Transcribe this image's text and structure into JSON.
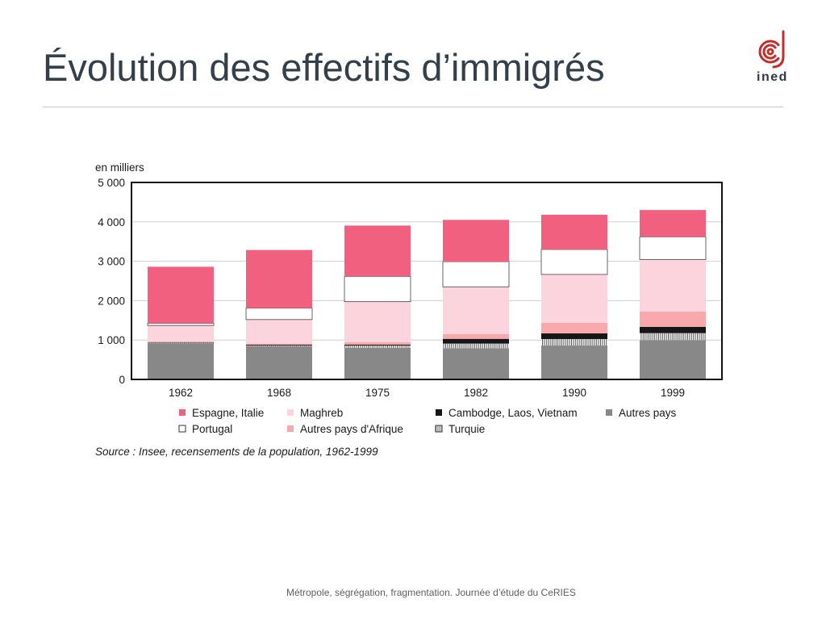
{
  "slide": {
    "title": "Évolution des effectifs d’immigrés",
    "footer": "Métropole, ségrégation, fragmentation. Journée d’étude du CeRIES"
  },
  "logo": {
    "icon": "ined-logo-icon",
    "text": "ined",
    "color": "#c62d2a"
  },
  "colors": {
    "title": "#333f4a",
    "rule": "#c6c6c6",
    "footer": "#5f5f5f"
  },
  "chart_data": {
    "type": "bar",
    "stacked": true,
    "ylabel": "en milliers",
    "ylim": [
      0,
      5000
    ],
    "yticks": [
      0,
      1000,
      2000,
      3000,
      4000,
      5000
    ],
    "ytick_labels": [
      "0",
      "1 000",
      "2 000",
      "3 000",
      "4 000",
      "5 000"
    ],
    "grid": true,
    "legend_position": "bottom",
    "categories": [
      "1962",
      "1968",
      "1975",
      "1982",
      "1990",
      "1999"
    ],
    "series": [
      {
        "name": "Autres pays",
        "color": "#888888",
        "values": [
          920,
          840,
          800,
          790,
          860,
          1000
        ]
      },
      {
        "name": "Turquie",
        "color": "#555555",
        "pattern": "vertical-stripes",
        "values": [
          15,
          20,
          60,
          120,
          165,
          175
        ]
      },
      {
        "name": "Cambodge, Laos, Vietnam",
        "color": "#161616",
        "values": [
          10,
          20,
          25,
          120,
          145,
          160
        ]
      },
      {
        "name": "Autres pays d'Afrique",
        "color": "#f9a9ab",
        "values": [
          20,
          30,
          60,
          120,
          265,
          390
        ]
      },
      {
        "name": "Maghreb",
        "color": "#fcd4de",
        "values": [
          405,
          610,
          1030,
          1200,
          1230,
          1320
        ]
      },
      {
        "name": "Portugal",
        "color": "#ffffff",
        "values": [
          55,
          290,
          640,
          640,
          635,
          575
        ]
      },
      {
        "name": "Espagne, Italie",
        "color": "#f1607e",
        "values": [
          1435,
          1475,
          1290,
          1060,
          880,
          680
        ]
      }
    ],
    "source": "Source : Insee, recensements de la population, 1962-1999"
  }
}
